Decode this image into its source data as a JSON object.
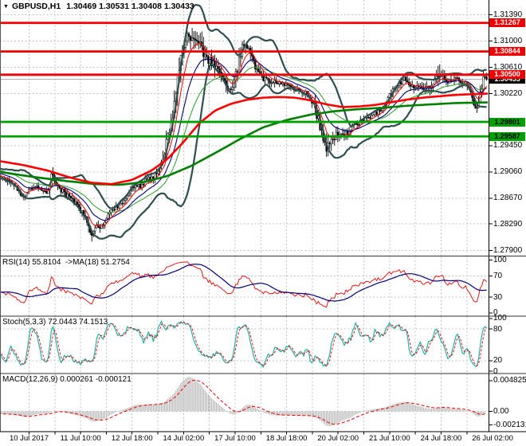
{
  "window": {
    "dropdown_icon": "▼",
    "symbol_period": "GBPUSD,H1",
    "ohlc_line": "1.30469 1.30531 1.30408 1.30433"
  },
  "colors": {
    "grid": "#c4c4c4",
    "bollinger": "#2F4F4F",
    "ma_fast_thin_red": "#ff0000",
    "ma_mid_navy": "#000080",
    "ma_slow_thin_green": "#2e9e2e",
    "ma_thick_red": "#ff0000",
    "ma_thick_green": "#008000",
    "resistance_line": "#f00000",
    "support_line": "#00a000",
    "current_price_line": "#b0b0b0",
    "candle_up": "#ffffff",
    "candle_down": "#000000",
    "rsi_line": "#f00000",
    "rsi_ma_line": "#000080",
    "stoch_k": "#20b2aa",
    "stoch_d": "#f00000",
    "macd_hist": "#b6b6b6",
    "macd_signal": "#f00000"
  },
  "chart_data": {
    "type": "candlestick",
    "symbol": "GBPUSD",
    "timeframe": "H1",
    "current_bar": {
      "open": 1.30469,
      "high": 1.30531,
      "low": 1.30408,
      "close": 1.30433
    },
    "x_axis": {
      "labels": [
        "10 Jul 2017",
        "11 Jul 10:00",
        "12 Jul 18:00",
        "14 Jul 02:00",
        "17 Jul 10:00",
        "18 Jul 18:00",
        "20 Jul 02:00",
        "21 Jul 10:00",
        "24 Jul 18:00",
        "26 Jul 02:00"
      ]
    },
    "main": {
      "y_tick_labels": [
        "1.31390",
        "1.31000",
        "1.30610",
        "1.30220",
        "1.29450",
        "1.29060",
        "1.28670",
        "1.28290",
        "1.27900"
      ],
      "y_tick_values": [
        1.3139,
        1.31,
        1.3061,
        1.3022,
        1.2945,
        1.2906,
        1.2867,
        1.2829,
        1.279
      ],
      "price_levels": [
        {
          "label": "1.31267",
          "price": 1.31267,
          "kind": "resistance"
        },
        {
          "label": "1.30844",
          "price": 1.30844,
          "kind": "resistance"
        },
        {
          "label": "1.30500",
          "price": 1.305,
          "kind": "resistance"
        },
        {
          "label": "1.30433",
          "price": 1.30433,
          "kind": "current"
        },
        {
          "label": "1.29801",
          "price": 1.29801,
          "kind": "support"
        },
        {
          "label": "1.29587",
          "price": 1.29587,
          "kind": "support"
        }
      ],
      "indicators": {
        "bollinger_period": 20,
        "bollinger_dev": 1.8,
        "ema_fast": 8,
        "ema_mid": 18,
        "ema_slow": 34
      },
      "pre_anchors": [
        [
          -330,
          1.2936
        ],
        [
          -250,
          1.295
        ],
        [
          -170,
          1.2945
        ],
        [
          -100,
          1.2928
        ],
        [
          -45,
          1.2913
        ],
        [
          -2,
          1.2899
        ]
      ],
      "price_anchors": [
        [
          0,
          1.2898
        ],
        [
          10,
          1.2893
        ],
        [
          18,
          1.2886
        ],
        [
          24,
          1.2876
        ],
        [
          30,
          1.2868
        ],
        [
          36,
          1.288
        ],
        [
          44,
          1.2884
        ],
        [
          52,
          1.2882
        ],
        [
          58,
          1.2876
        ],
        [
          63,
          1.289
        ],
        [
          66,
          1.2906
        ],
        [
          70,
          1.2888
        ],
        [
          76,
          1.288
        ],
        [
          84,
          1.2872
        ],
        [
          92,
          1.2862
        ],
        [
          100,
          1.2852
        ],
        [
          106,
          1.2842
        ],
        [
          112,
          1.282
        ],
        [
          116,
          1.2812
        ],
        [
          121,
          1.2823
        ],
        [
          128,
          1.2828
        ],
        [
          136,
          1.2842
        ],
        [
          144,
          1.2852
        ],
        [
          152,
          1.2858
        ],
        [
          158,
          1.2866
        ],
        [
          164,
          1.2878
        ],
        [
          170,
          1.2888
        ],
        [
          176,
          1.2885
        ],
        [
          182,
          1.2892
        ],
        [
          190,
          1.2896
        ],
        [
          196,
          1.2902
        ],
        [
          202,
          1.2916
        ],
        [
          207,
          1.2938
        ],
        [
          212,
          1.2965
        ],
        [
          217,
          1.2995
        ],
        [
          222,
          1.304
        ],
        [
          227,
          1.3078
        ],
        [
          232,
          1.3102
        ],
        [
          237,
          1.3108
        ],
        [
          242,
          1.3094
        ],
        [
          247,
          1.31
        ],
        [
          252,
          1.309
        ],
        [
          258,
          1.308
        ],
        [
          264,
          1.307
        ],
        [
          270,
          1.3064
        ],
        [
          276,
          1.3055
        ],
        [
          282,
          1.3036
        ],
        [
          287,
          1.3028
        ],
        [
          292,
          1.3033
        ],
        [
          297,
          1.3055
        ],
        [
          302,
          1.3081
        ],
        [
          306,
          1.3098
        ],
        [
          309,
          1.3101
        ],
        [
          313,
          1.3083
        ],
        [
          318,
          1.3067
        ],
        [
          324,
          1.3054
        ],
        [
          330,
          1.3044
        ],
        [
          338,
          1.3039
        ],
        [
          346,
          1.3041
        ],
        [
          354,
          1.3037
        ],
        [
          362,
          1.3032
        ],
        [
          370,
          1.3028
        ],
        [
          378,
          1.3026
        ],
        [
          386,
          1.3021
        ],
        [
          392,
          1.301
        ],
        [
          398,
          1.2988
        ],
        [
          404,
          1.2964
        ],
        [
          410,
          1.2943
        ],
        [
          414,
          1.2946
        ],
        [
          420,
          1.2957
        ],
        [
          426,
          1.2964
        ],
        [
          432,
          1.2961
        ],
        [
          438,
          1.2967
        ],
        [
          446,
          1.2977
        ],
        [
          454,
          1.2981
        ],
        [
          462,
          1.2985
        ],
        [
          470,
          1.2991
        ],
        [
          478,
          1.2999
        ],
        [
          486,
          1.3012
        ],
        [
          494,
          1.3027
        ],
        [
          502,
          1.3039
        ],
        [
          508,
          1.3044
        ],
        [
          514,
          1.3038
        ],
        [
          520,
          1.3033
        ],
        [
          526,
          1.3036
        ],
        [
          532,
          1.303
        ],
        [
          538,
          1.3027
        ],
        [
          544,
          1.3036
        ],
        [
          549,
          1.3044
        ],
        [
          551,
          1.3061
        ],
        [
          554,
          1.3046
        ],
        [
          560,
          1.3041
        ],
        [
          566,
          1.3044
        ],
        [
          572,
          1.3046
        ],
        [
          578,
          1.3042
        ],
        [
          584,
          1.3036
        ],
        [
          590,
          1.3022
        ],
        [
          594,
          1.301
        ],
        [
          598,
          1.3003
        ],
        [
          602,
          1.3018
        ],
        [
          605,
          1.3037
        ],
        [
          608,
          1.305
        ],
        [
          610,
          1.3043
        ]
      ],
      "vol_anchors": [
        [
          -330,
          0.0013
        ],
        [
          0,
          0.0011
        ],
        [
          40,
          0.001
        ],
        [
          60,
          0.0013
        ],
        [
          64,
          0.0034
        ],
        [
          68,
          0.0014
        ],
        [
          100,
          0.0016
        ],
        [
          112,
          0.0019
        ],
        [
          130,
          0.0013
        ],
        [
          160,
          0.0012
        ],
        [
          196,
          0.0014
        ],
        [
          210,
          0.003
        ],
        [
          222,
          0.0038
        ],
        [
          235,
          0.0026
        ],
        [
          250,
          0.003
        ],
        [
          268,
          0.0024
        ],
        [
          285,
          0.0022
        ],
        [
          298,
          0.003
        ],
        [
          308,
          0.0026
        ],
        [
          320,
          0.002
        ],
        [
          335,
          0.0015
        ],
        [
          360,
          0.0012
        ],
        [
          388,
          0.0013
        ],
        [
          400,
          0.0028
        ],
        [
          412,
          0.0027
        ],
        [
          425,
          0.0017
        ],
        [
          445,
          0.0013
        ],
        [
          470,
          0.0012
        ],
        [
          490,
          0.0016
        ],
        [
          505,
          0.0015
        ],
        [
          525,
          0.0013
        ],
        [
          545,
          0.0022
        ],
        [
          551,
          0.0042
        ],
        [
          557,
          0.0016
        ],
        [
          575,
          0.0013
        ],
        [
          590,
          0.0015
        ],
        [
          598,
          0.0018
        ],
        [
          606,
          0.002
        ],
        [
          610,
          0.0012
        ]
      ],
      "ma_thick_red_anchors": [
        [
          0,
          1.2922
        ],
        [
          30,
          1.2916
        ],
        [
          60,
          1.2908
        ],
        [
          90,
          1.2897
        ],
        [
          115,
          1.289
        ],
        [
          140,
          1.2888
        ],
        [
          165,
          1.2894
        ],
        [
          190,
          1.2908
        ],
        [
          210,
          1.2925
        ],
        [
          230,
          1.295
        ],
        [
          250,
          1.2978
        ],
        [
          270,
          1.2997
        ],
        [
          290,
          1.3007
        ],
        [
          310,
          1.3013
        ],
        [
          330,
          1.3016
        ],
        [
          350,
          1.3017
        ],
        [
          370,
          1.3016
        ],
        [
          390,
          1.3012
        ],
        [
          410,
          1.3006
        ],
        [
          430,
          1.3002
        ],
        [
          450,
          1.3003
        ],
        [
          470,
          1.3005
        ],
        [
          490,
          1.3009
        ],
        [
          510,
          1.3013
        ],
        [
          530,
          1.3016
        ],
        [
          550,
          1.3018
        ],
        [
          570,
          1.302
        ],
        [
          590,
          1.3021
        ],
        [
          613,
          1.3022
        ]
      ],
      "ma_thick_green_anchors": [
        [
          0,
          1.2906
        ],
        [
          40,
          1.2899
        ],
        [
          80,
          1.2893
        ],
        [
          120,
          1.2888
        ],
        [
          150,
          1.2887
        ],
        [
          180,
          1.2891
        ],
        [
          210,
          1.29
        ],
        [
          240,
          1.2915
        ],
        [
          270,
          1.2934
        ],
        [
          300,
          1.2954
        ],
        [
          330,
          1.2972
        ],
        [
          360,
          1.2983
        ],
        [
          390,
          1.2991
        ],
        [
          420,
          1.2996
        ],
        [
          450,
          1.2999
        ],
        [
          480,
          1.3001
        ],
        [
          510,
          1.3004
        ],
        [
          540,
          1.3006
        ],
        [
          570,
          1.3008
        ],
        [
          613,
          1.3009
        ]
      ]
    },
    "rsi": {
      "label": "RSI(14) 55.8104  ->MA(18) 51.2754",
      "period": 14,
      "ma_period": 18,
      "value": 55.8104,
      "ma_value": 51.2754,
      "tick_labels": [
        "100",
        "70",
        "30",
        "0"
      ],
      "tick_values": [
        100,
        70,
        30,
        0
      ],
      "levels": [
        70,
        30
      ]
    },
    "stoch": {
      "label": "Stoch(5,3,3) 72.0443 74.1513",
      "k_value": 72.0443,
      "d_value": 74.1513,
      "tick_labels": [
        "100",
        "80",
        "20",
        "0"
      ],
      "tick_values": [
        100,
        80,
        20,
        0
      ],
      "levels": [
        80,
        20
      ]
    },
    "macd": {
      "label": "MACD(12,26,9) 0.000261 -0.000121",
      "value": 0.000261,
      "signal_value": -0.000121,
      "tick_labels": [
        "0.004825",
        "0.00",
        "-0.002131"
      ],
      "tick_values": [
        0.004825,
        0,
        -0.002131
      ]
    }
  }
}
